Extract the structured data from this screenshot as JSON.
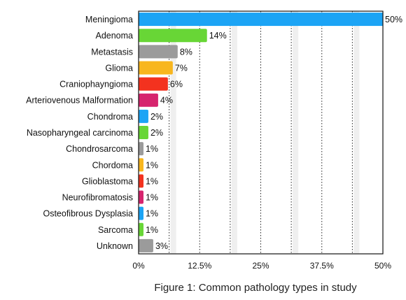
{
  "chart_data": {
    "type": "bar",
    "orientation": "horizontal",
    "categories": [
      "Meningioma",
      "Adenoma",
      "Metastasis",
      "Glioma",
      "Craniophayngioma",
      "Arteriovenous Malformation",
      "Chondroma",
      "Nasopharyngeal carcinoma",
      "Chondrosarcoma",
      "Chordoma",
      "Glioblastoma",
      "Neurofibromatosis",
      "Osteofibrous Dysplasia",
      "Sarcoma",
      "Unknown"
    ],
    "values": [
      50,
      14,
      8,
      7,
      6,
      4,
      2,
      2,
      1,
      1,
      1,
      1,
      1,
      1,
      3
    ],
    "value_labels": [
      "50%",
      "14%",
      "8%",
      "7%",
      "6%",
      "4%",
      "2%",
      "2%",
      "1%",
      "1%",
      "1%",
      "1%",
      "1%",
      "1%",
      "3%"
    ],
    "bar_colors": [
      "#1ca4f5",
      "#68d636",
      "#9b9b9b",
      "#f8b61e",
      "#f3321f",
      "#d6246e",
      "#1ca4f5",
      "#68d636",
      "#9b9b9b",
      "#f8b61e",
      "#f3321f",
      "#d6246e",
      "#1ca4f5",
      "#68d636",
      "#9b9b9b"
    ],
    "xlim": [
      0,
      50
    ],
    "x_ticks": [
      0,
      12.5,
      25,
      37.5,
      50
    ],
    "x_tick_labels": [
      "0%",
      "12.5%",
      "25%",
      "37.5%",
      "50%"
    ],
    "grid": "vertical",
    "title": "",
    "xlabel": "",
    "ylabel": ""
  },
  "caption": "Figure 1: Common pathology types in study"
}
